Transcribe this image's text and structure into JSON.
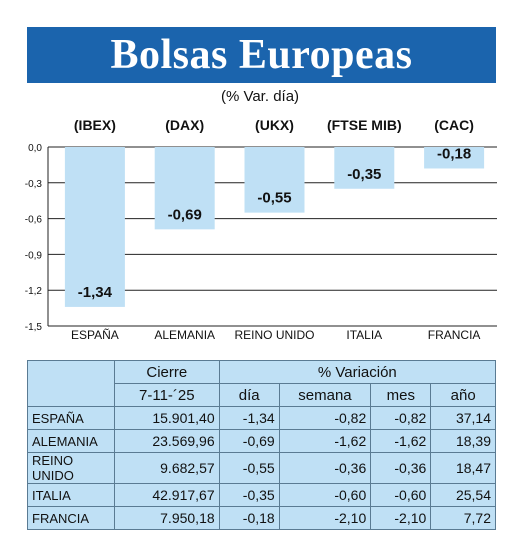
{
  "header": {
    "title": "Bolsas Europeas",
    "subtitle": "(% Var. día)"
  },
  "chart_data": {
    "type": "bar",
    "indices": [
      "(IBEX)",
      "(DAX)",
      "(UKX)",
      "(FTSE MIB)",
      "(CAC)"
    ],
    "categories": [
      "ESPAÑA",
      "ALEMANIA",
      "REINO UNIDO",
      "ITALIA",
      "FRANCIA"
    ],
    "values": [
      -1.34,
      -0.69,
      -0.55,
      -0.35,
      -0.18
    ],
    "value_labels": [
      "-1,34",
      "-0,69",
      "-0,55",
      "-0,35",
      "-0,18"
    ],
    "yticks": [
      0.0,
      -0.3,
      -0.6,
      -0.9,
      -1.2,
      -1.5
    ],
    "ytick_labels": [
      "0,0",
      "-0,3",
      "-0,6",
      "-0,9",
      "-1,2",
      "-1,5"
    ],
    "ylim": [
      -1.5,
      0.0
    ],
    "grid": true,
    "bar_color": "#bfe0f5"
  },
  "table": {
    "header_cierre": "Cierre",
    "header_variacion": "% Variación",
    "date": "7-11-´25",
    "columns": [
      "día",
      "semana",
      "mes",
      "año"
    ],
    "rows": [
      {
        "name": "ESPAÑA",
        "cierre": "15.901,40",
        "dia": "-1,34",
        "semana": "-0,82",
        "mes": "-0,82",
        "ano": "37,14"
      },
      {
        "name": "ALEMANIA",
        "cierre": "23.569,96",
        "dia": "-0,69",
        "semana": "-1,62",
        "mes": "-1,62",
        "ano": "18,39"
      },
      {
        "name": "REINO UNIDO",
        "cierre": "9.682,57",
        "dia": "-0,55",
        "semana": "-0,36",
        "mes": "-0,36",
        "ano": "18,47"
      },
      {
        "name": "ITALIA",
        "cierre": "42.917,67",
        "dia": "-0,35",
        "semana": "-0,60",
        "mes": "-0,60",
        "ano": "25,54"
      },
      {
        "name": "FRANCIA",
        "cierre": "7.950,18",
        "dia": "-0,18",
        "semana": "-2,10",
        "mes": "-2,10",
        "ano": "7,72"
      }
    ]
  }
}
